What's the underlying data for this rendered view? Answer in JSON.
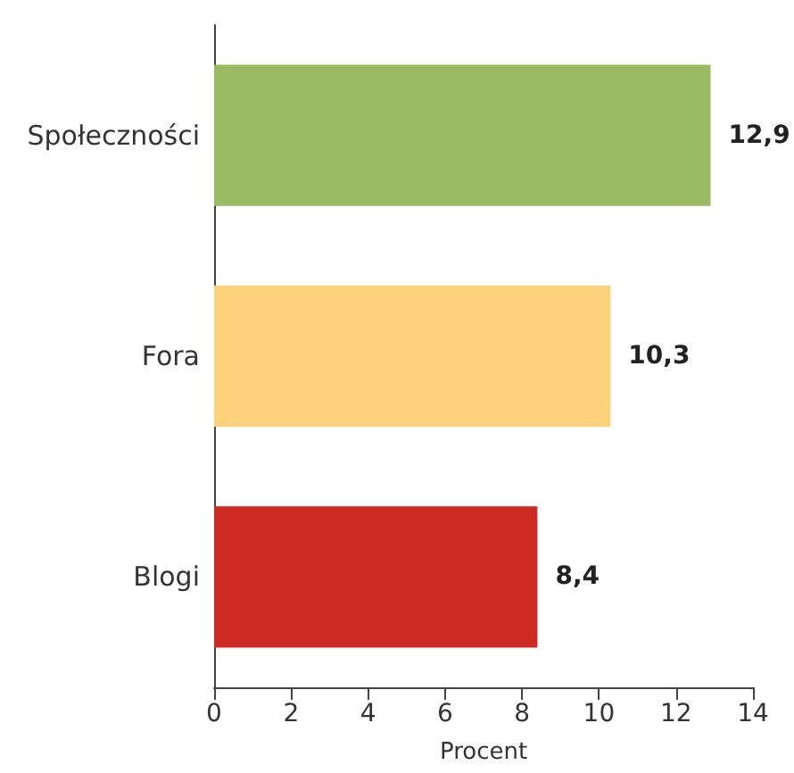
{
  "chart_data": {
    "type": "bar",
    "orientation": "horizontal",
    "xlabel": "Procent",
    "categories": [
      "Społeczności",
      "Fora",
      "Blogi"
    ],
    "values": [
      12.9,
      10.3,
      8.4
    ],
    "colors": [
      "#9bbb63",
      "#fdd27c",
      "#cc2a22"
    ],
    "value_labels": [
      "12,9",
      "10,3",
      "8,4"
    ],
    "xlim": [
      0,
      14
    ],
    "xticks": [
      0,
      2,
      4,
      6,
      8,
      10,
      12,
      14
    ],
    "grid": false
  }
}
